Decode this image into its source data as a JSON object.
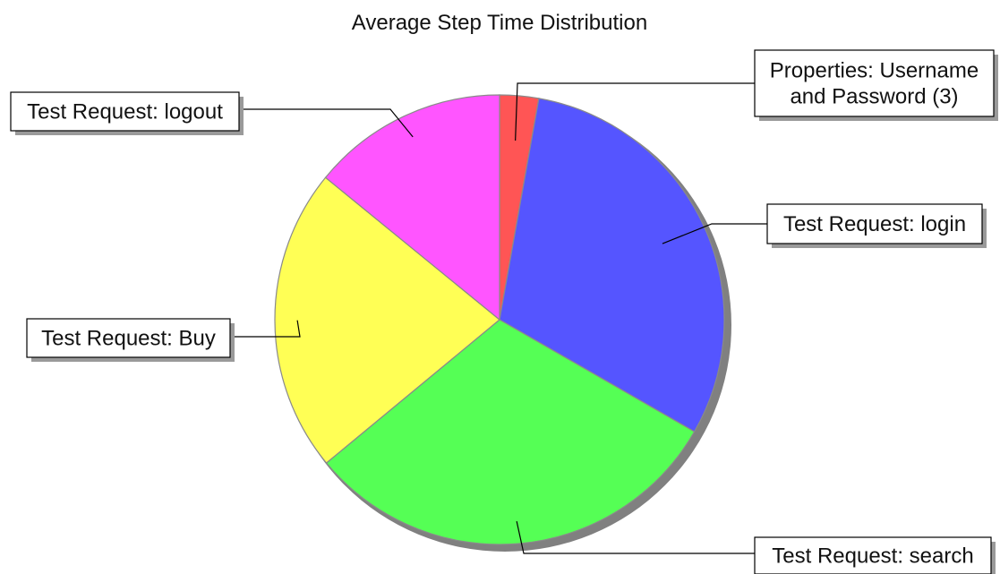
{
  "chart_data": {
    "type": "pie",
    "title": "Average Step Time Distribution",
    "labels": [
      [
        "Properties: Username",
        "and Password (3)"
      ],
      [
        "Test Request: login"
      ],
      [
        "Test Request: search"
      ],
      [
        "Test Request: Buy"
      ],
      [
        "Test Request: logout"
      ]
    ],
    "values": [
      2.8,
      30.5,
      30.7,
      21.9,
      14.1
    ],
    "value_unit": "percent of total (estimated)",
    "colors": [
      "#ff5555",
      "#5555ff",
      "#55ff55",
      "#ffff55",
      "#ff55ff"
    ],
    "start_angle": "12 o'clock",
    "direction": "clockwise",
    "legend": "none (callout labels)"
  }
}
